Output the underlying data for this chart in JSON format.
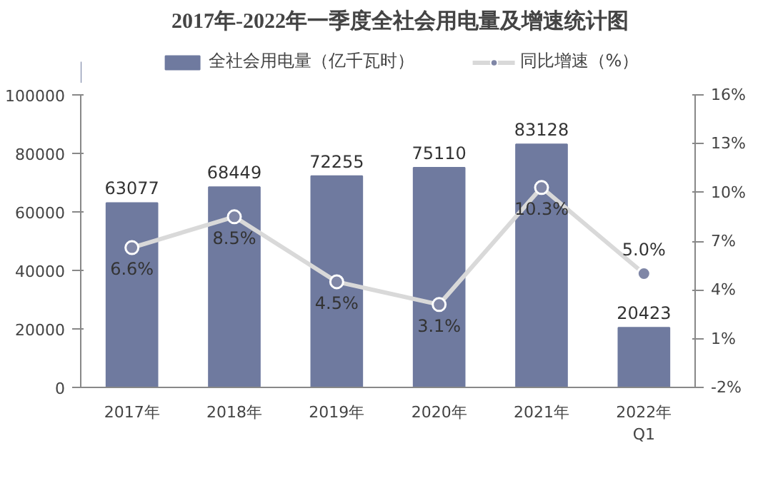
{
  "chart_data": {
    "type": "bar",
    "title": "2017年-2022年一季度全社会用电量及增速统计图",
    "categories": [
      "2017年",
      "2018年",
      "2019年",
      "2020年",
      "2021年",
      "2022年\nQ1"
    ],
    "series": [
      {
        "name": "全社会用电量（亿千瓦时）",
        "color": "#6f7a9f",
        "values": [
          63077,
          68449,
          72255,
          75110,
          83128,
          20423
        ],
        "value_labels": [
          "63077",
          "68449",
          "72255",
          "75110",
          "83128",
          "20423"
        ]
      },
      {
        "name": "同比增速（%）",
        "type": "line",
        "axis": "y2",
        "color": "#d9d9d9",
        "marker": "circle",
        "values": [
          6.6,
          8.5,
          4.5,
          3.1,
          10.3,
          5.0
        ],
        "value_labels": [
          "6.6%",
          "8.5%",
          "4.5%",
          "3.1%",
          "10.3%",
          "5.0%"
        ]
      }
    ],
    "ylim": [
      0,
      100000
    ],
    "yticks": [
      0,
      20000,
      40000,
      60000,
      80000,
      100000
    ],
    "y2lim": [
      -2,
      16
    ],
    "y2ticks": [
      {
        "value": -2,
        "label": "-2%"
      },
      {
        "value": 1,
        "label": "1%"
      },
      {
        "value": 4,
        "label": "4%"
      },
      {
        "value": 7,
        "label": "7%"
      },
      {
        "value": 10,
        "label": "10%"
      },
      {
        "value": 13,
        "label": "13%"
      },
      {
        "value": 16,
        "label": "16%"
      }
    ],
    "grid": false,
    "legend": "top"
  }
}
